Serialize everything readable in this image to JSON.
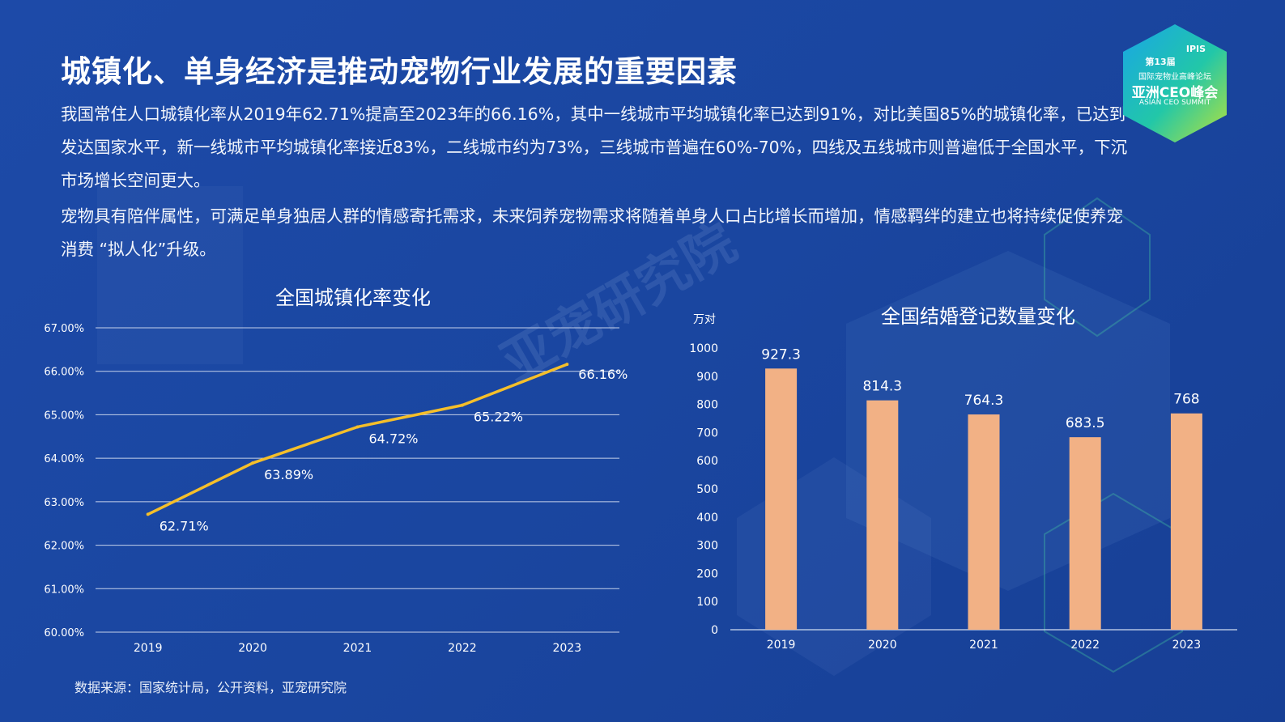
{
  "title": "城镇化、单身经济是推动宠物行业发展的重要因素",
  "paragraph_1": "我国常住人口城镇化率从2019年62.71%提高至2023年的66.16%，其中一线城市平均城镇化率已达到91%，对比美国85%的城镇化率，已达到发达国家水平，新一线城市平均城镇化率接近83%，二线城市约为73%，三线城市普遍在60%-70%，四线及五线城市则普遍低于全国水平，下沉市场增长空间更大。",
  "paragraph_2": "宠物具有陪伴属性，可满足单身独居人群的情感寄托需求，未来饲养宠物需求将随着单身人口占比增长而增加，情感羁绊的建立也将持续促使养宠消费 “拟人化”升级。",
  "source": "数据来源：国家统计局，公开资料，亚宠研究院",
  "watermark": "亚宠研究院",
  "logo": {
    "brand": "IPIS",
    "edition": "第13届",
    "forum": "国际宠物业高峰论坛",
    "summit": "亚洲CEO峰会",
    "summit_en": "ASIAN CEO SUMMIT"
  },
  "colors": {
    "background": "#1b47a2",
    "line": "#f5bf2a",
    "bar": "#f2b185",
    "grid": "#c5d1ea"
  },
  "chart_data": [
    {
      "type": "line",
      "title": "全国城镇化率变化",
      "categories": [
        "2019",
        "2020",
        "2021",
        "2022",
        "2023"
      ],
      "values": [
        62.71,
        63.89,
        64.72,
        65.22,
        66.16
      ],
      "data_labels": [
        "62.71%",
        "63.89%",
        "64.72%",
        "65.22%",
        "66.16%"
      ],
      "ylim": [
        60,
        67
      ],
      "yticks": [
        "60.00%",
        "61.00%",
        "62.00%",
        "63.00%",
        "64.00%",
        "65.00%",
        "66.00%",
        "67.00%"
      ],
      "grid": true,
      "legend": "none"
    },
    {
      "type": "bar",
      "title": "全国结婚登记数量变化",
      "ylabel": "万对",
      "categories": [
        "2019",
        "2020",
        "2021",
        "2022",
        "2023"
      ],
      "values": [
        927.3,
        814.3,
        764.3,
        683.5,
        768
      ],
      "data_labels": [
        "927.3",
        "814.3",
        "764.3",
        "683.5",
        "768"
      ],
      "ylim": [
        0,
        1000
      ],
      "yticks": [
        "0",
        "100",
        "200",
        "300",
        "400",
        "500",
        "600",
        "700",
        "800",
        "900",
        "1000"
      ],
      "grid": false,
      "legend": "none"
    }
  ]
}
